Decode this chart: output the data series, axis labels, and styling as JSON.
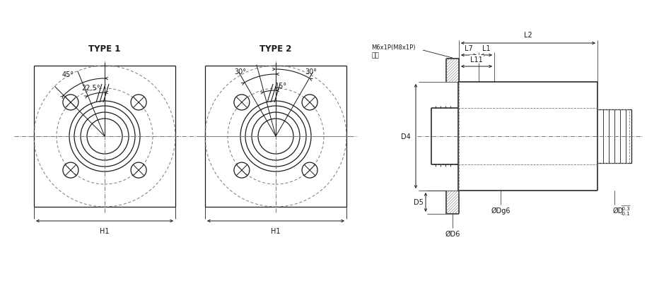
{
  "bg_color": "#ffffff",
  "line_color": "#1a1a1a",
  "dash_color": "#777777",
  "gray_color": "#aaaaaa",
  "title1": "TYPE 1",
  "title2": "TYPE 2",
  "label_h1": "H1",
  "label_d4": "D4",
  "label_d5": "D5",
  "label_d6": "ØD6",
  "label_dg6": "ØDg6",
  "label_d_tol": "ØD",
  "label_l2": "L2",
  "label_l7": "L7",
  "label_l1": "L1",
  "label_l11": "L11",
  "label_thread": "M6x1P(M8x1P)",
  "label_oil": "油孔",
  "angle_45": "45°",
  "angle_225": "22.5°",
  "angle_30a": "30°",
  "angle_15": "15°",
  "angle_30b": "30°",
  "font_size_title": 8.5,
  "font_size_label": 7,
  "font_size_small": 6,
  "font_size_tol": 5
}
